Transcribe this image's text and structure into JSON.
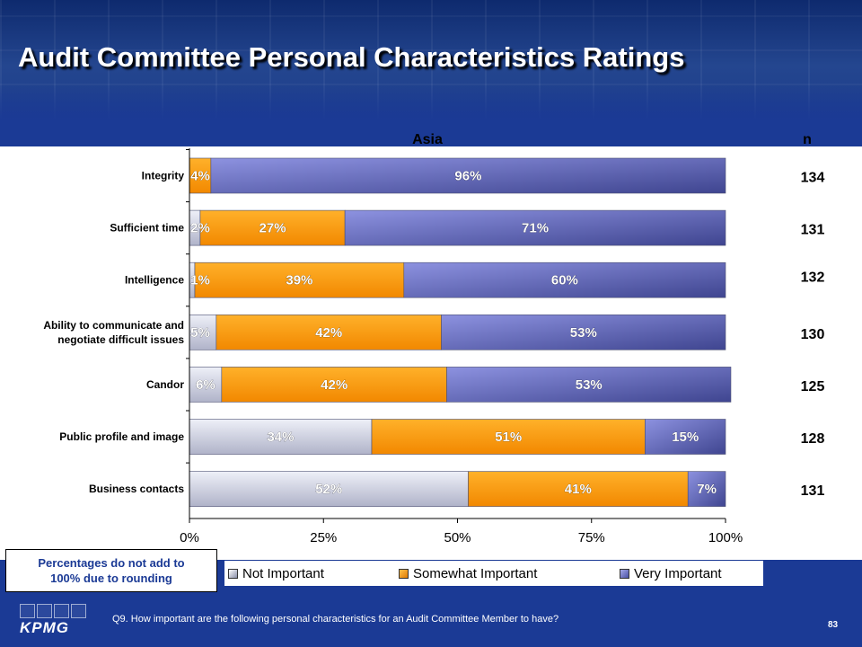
{
  "slide": {
    "title": "Audit Committee Personal Characteristics Ratings",
    "footnote_line1": "Percentages do not add to",
    "footnote_line2": "100% due to rounding",
    "question": "Q9. How important are the following personal characteristics for an Audit Committee Member to have?",
    "page_number": "83",
    "logo_text": "KPMG"
  },
  "chart_data": {
    "type": "bar",
    "orientation": "horizontal",
    "stacked": true,
    "percent_stacked": true,
    "title": "Asia",
    "n_header": "n",
    "categories": [
      [
        "Integrity"
      ],
      [
        "Sufficient time"
      ],
      [
        "Intelligence"
      ],
      [
        "Ability to communicate and",
        "negotiate difficult issues"
      ],
      [
        "Candor"
      ],
      [
        "Public profile and image"
      ],
      [
        "Business contacts"
      ]
    ],
    "n": [
      "134",
      "131",
      "132",
      "130",
      "125",
      "128",
      "131"
    ],
    "series": [
      {
        "name": "Not Important",
        "values": [
          0,
          2,
          1,
          5,
          6,
          34,
          52
        ],
        "labels": [
          "",
          "2%",
          "1%",
          "5%",
          "6%",
          "34%",
          "52%"
        ],
        "color": "#c8cadb"
      },
      {
        "name": "Somewhat Important",
        "values": [
          4,
          27,
          39,
          42,
          42,
          51,
          41
        ],
        "labels": [
          "4%",
          "27%",
          "39%",
          "42%",
          "42%",
          "51%",
          "41%"
        ],
        "color": "#ff9a00"
      },
      {
        "name": "Very Important",
        "values": [
          96,
          71,
          60,
          53,
          53,
          15,
          7
        ],
        "labels": [
          "96%",
          "71%",
          "60%",
          "53%",
          "53%",
          "15%",
          "7%"
        ],
        "color": "#7f84cf"
      }
    ],
    "x_ticks": [
      "0%",
      "25%",
      "50%",
      "75%",
      "100%"
    ],
    "xlim": [
      0,
      100
    ],
    "legend_position": "bottom",
    "grid": false
  }
}
